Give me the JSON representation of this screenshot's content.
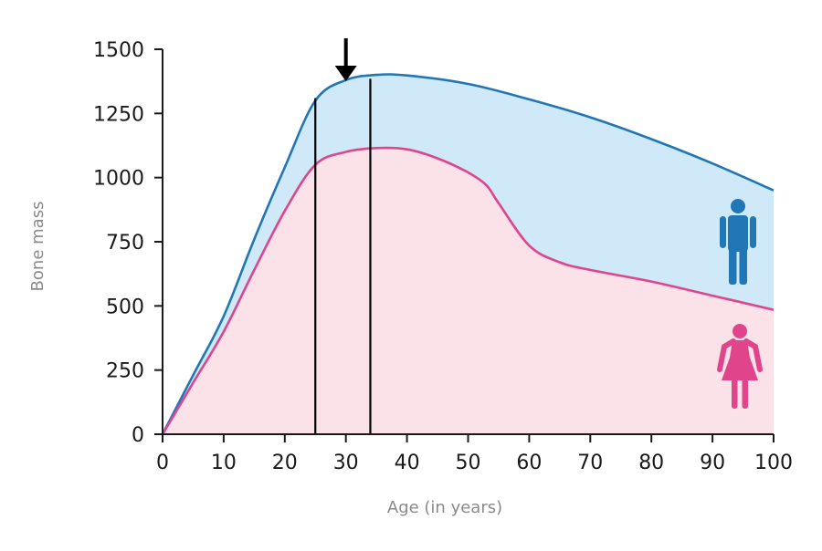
{
  "chart_data": {
    "type": "area",
    "title": "",
    "xlabel": "Age (in years)",
    "ylabel": "Bone mass",
    "xlim": [
      0,
      100
    ],
    "ylim": [
      0,
      1500
    ],
    "x_ticks": [
      0,
      10,
      20,
      30,
      40,
      50,
      60,
      70,
      80,
      90,
      100
    ],
    "y_ticks": [
      0,
      250,
      500,
      750,
      1000,
      1250,
      1500
    ],
    "grid": false,
    "series": [
      {
        "color": "#2177b5",
        "fill": "#cfe9f8",
        "icon": "male-figure-icon",
        "points": [
          [
            0,
            0
          ],
          [
            5,
            230
          ],
          [
            10,
            460
          ],
          [
            15,
            760
          ],
          [
            20,
            1040
          ],
          [
            25,
            1300
          ],
          [
            30,
            1380
          ],
          [
            35,
            1400
          ],
          [
            40,
            1398
          ],
          [
            50,
            1365
          ],
          [
            60,
            1305
          ],
          [
            70,
            1235
          ],
          [
            80,
            1150
          ],
          [
            90,
            1055
          ],
          [
            100,
            950
          ]
        ]
      },
      {
        "color": "#e0458c",
        "fill": "#fbe1e8",
        "icon": "female-figure-icon",
        "points": [
          [
            0,
            0
          ],
          [
            5,
            200
          ],
          [
            10,
            400
          ],
          [
            15,
            640
          ],
          [
            20,
            870
          ],
          [
            25,
            1050
          ],
          [
            30,
            1100
          ],
          [
            35,
            1115
          ],
          [
            40,
            1110
          ],
          [
            45,
            1075
          ],
          [
            50,
            1020
          ],
          [
            53,
            970
          ],
          [
            55,
            900
          ],
          [
            60,
            735
          ],
          [
            65,
            670
          ],
          [
            70,
            640
          ],
          [
            80,
            595
          ],
          [
            90,
            540
          ],
          [
            100,
            485
          ]
        ]
      }
    ],
    "annotations": {
      "arrow_x": 30,
      "arrow_color": "#000000",
      "vertical_lines": [
        {
          "x": 25,
          "y_top": 1310
        },
        {
          "x": 34,
          "y_top": 1385
        }
      ]
    }
  }
}
